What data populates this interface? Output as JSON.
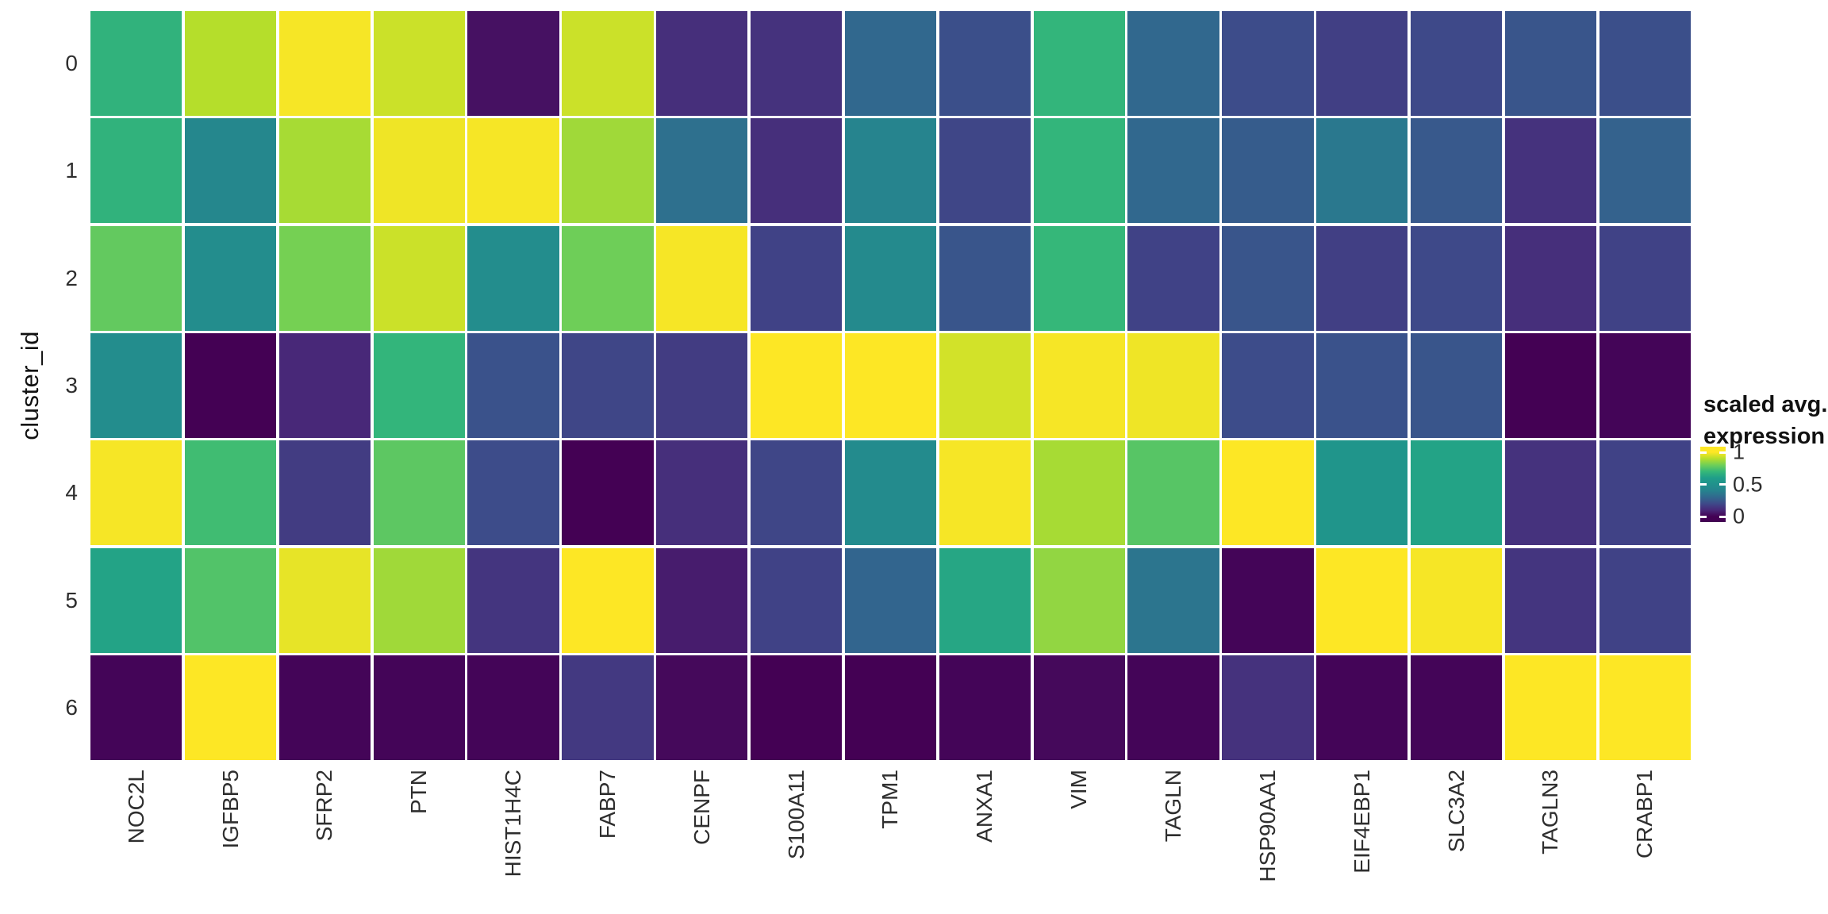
{
  "y_axis": {
    "title": "cluster_id",
    "tick_labels": [
      "0",
      "1",
      "2",
      "3",
      "4",
      "5",
      "6"
    ]
  },
  "x_axis": {
    "tick_labels": [
      "NOC2L",
      "IGFBP5",
      "SFRP2",
      "PTN",
      "HIST1H4C",
      "FABP7",
      "CENPF",
      "S100A11",
      "TPM1",
      "ANXA1",
      "VIM",
      "TAGLN",
      "HSP90AA1",
      "EIF4EBP1",
      "SLC3A2",
      "TAGLN3",
      "CRABP1"
    ],
    "label_rotation_degrees": 90
  },
  "legend": {
    "title_line1": "scaled avg.",
    "title_line2": "expression",
    "tick_labels": [
      "1",
      "0.5",
      "0"
    ],
    "tick_values": [
      1,
      0.5,
      0
    ]
  },
  "colors": {
    "background": "#ffffff",
    "grid_gap": "#ffffff",
    "axis_text": "#2e2e2e",
    "axis_title": "#111111",
    "viridis_stops": [
      "#440154",
      "#482878",
      "#3e4989",
      "#31688e",
      "#26828e",
      "#21918c",
      "#1f9e89",
      "#35b779",
      "#6ece58",
      "#b5de2b",
      "#fde725"
    ]
  },
  "chart_data": {
    "type": "heatmap",
    "title": "",
    "xlabel": "",
    "ylabel": "cluster_id",
    "legend_title": "scaled avg. expression",
    "palette": "viridis",
    "color_domain": [
      0,
      1
    ],
    "legend_position": "right",
    "x_categories": [
      "NOC2L",
      "IGFBP5",
      "SFRP2",
      "PTN",
      "HIST1H4C",
      "FABP7",
      "CENPF",
      "S100A11",
      "TPM1",
      "ANXA1",
      "VIM",
      "TAGLN",
      "HSP90AA1",
      "EIF4EBP1",
      "SLC3A2",
      "TAGLN3",
      "CRABP1"
    ],
    "y_categories": [
      "0",
      "1",
      "2",
      "3",
      "4",
      "5",
      "6"
    ],
    "values": [
      [
        0.68,
        0.9,
        0.99,
        0.93,
        0.04,
        0.93,
        0.12,
        0.13,
        0.3,
        0.22,
        0.69,
        0.3,
        0.21,
        0.17,
        0.2,
        0.24,
        0.22
      ],
      [
        0.68,
        0.43,
        0.88,
        0.98,
        0.99,
        0.87,
        0.33,
        0.12,
        0.41,
        0.19,
        0.69,
        0.3,
        0.26,
        0.36,
        0.25,
        0.13,
        0.28
      ],
      [
        0.78,
        0.47,
        0.81,
        0.93,
        0.47,
        0.8,
        0.99,
        0.18,
        0.45,
        0.24,
        0.7,
        0.18,
        0.24,
        0.17,
        0.2,
        0.12,
        0.18
      ],
      [
        0.47,
        0.0,
        0.1,
        0.69,
        0.23,
        0.19,
        0.16,
        1.0,
        1.0,
        0.94,
        0.99,
        0.98,
        0.21,
        0.23,
        0.24,
        0.0,
        0.01
      ],
      [
        0.99,
        0.72,
        0.16,
        0.77,
        0.21,
        0.0,
        0.12,
        0.19,
        0.46,
        0.99,
        0.88,
        0.76,
        1.0,
        0.53,
        0.62,
        0.13,
        0.18
      ],
      [
        0.62,
        0.75,
        0.97,
        0.87,
        0.14,
        1.0,
        0.07,
        0.18,
        0.29,
        0.63,
        0.85,
        0.35,
        0.01,
        1.0,
        0.99,
        0.14,
        0.18
      ],
      [
        0.01,
        1.0,
        0.01,
        0.01,
        0.01,
        0.15,
        0.02,
        0.0,
        0.0,
        0.01,
        0.02,
        0.01,
        0.13,
        0.01,
        0.01,
        1.0,
        1.0
      ]
    ]
  }
}
